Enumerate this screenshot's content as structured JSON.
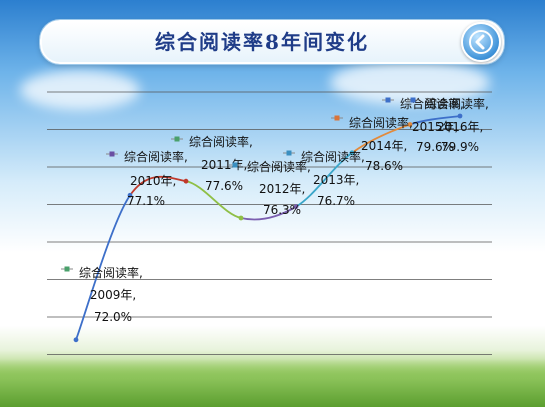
{
  "page": {
    "title": "综合阅读率8年间变化"
  },
  "icons": {
    "back": "back-arrow-icon"
  },
  "colors": {
    "title": "#1f3c88",
    "series_line": [
      "#3d6fc9",
      "#c0392b",
      "#8fbf45",
      "#7b5fb0",
      "#3aa6c9",
      "#e28a3c",
      "#3d6fc9"
    ]
  },
  "chart_data": {
    "type": "line",
    "title": "综合阅读率8年间变化",
    "xlabel": "",
    "ylabel": "",
    "grid": true,
    "ylim": [
      71.5,
      80.5
    ],
    "series_name": "综合阅读率",
    "points": [
      {
        "year": "2009年",
        "value": 72.0,
        "value_label": "72.0%",
        "series_label": "综合阅读率,",
        "year_label": "2009年,",
        "marker_color": "#4aa06b"
      },
      {
        "year": "2010年",
        "value": 77.1,
        "value_label": "77.1%",
        "series_label": "综合阅读率,",
        "year_label": "2010年,",
        "marker_color": "#6a4fa3"
      },
      {
        "year": "2011年",
        "value": 77.6,
        "value_label": "77.6%",
        "series_label": "综合阅读率,",
        "year_label": "2011年,",
        "marker_color": "#4aa06b"
      },
      {
        "year": "2012年",
        "value": 76.3,
        "value_label": "76.3%",
        "series_label": "综合阅读率,",
        "year_label": "2012年,",
        "marker_color": "#3a8fc0"
      },
      {
        "year": "2013年",
        "value": 76.7,
        "value_label": "76.7%",
        "series_label": "综合阅读率,",
        "year_label": "2013年,",
        "marker_color": "#3a8fc0"
      },
      {
        "year": "2014年",
        "value": 78.6,
        "value_label": "78.6%",
        "series_label": "综合阅读率,",
        "year_label": "2014年,",
        "marker_color": "#d9743a"
      },
      {
        "year": "2015年",
        "value": 79.6,
        "value_label": "79.6%",
        "series_label": "综合阅读率,",
        "year_label": "2015年,",
        "marker_color": "#3d6fc9"
      },
      {
        "year": "2016年",
        "value": 79.9,
        "value_label": "79.9%",
        "series_label": "综合阅读率,",
        "year_label": "2016年,",
        "marker_color": "#3d6fc9"
      }
    ]
  }
}
